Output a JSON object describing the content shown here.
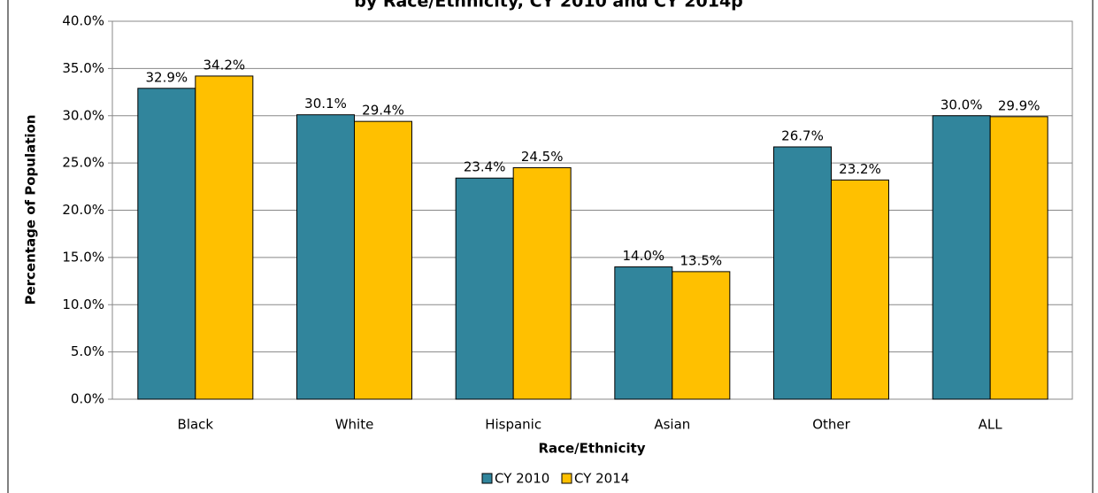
{
  "chart_data": {
    "type": "bar",
    "title": "by Race/Ethnicity, CY 2010 and CY 2014p",
    "x_label": "Race/Ethnicity",
    "y_label": "Percentage of Population",
    "categories": [
      "Black",
      "White",
      "Hispanic",
      "Asian",
      "Other",
      "ALL"
    ],
    "series": [
      {
        "name": "CY 2010",
        "color": "#31859c",
        "values": [
          32.9,
          30.1,
          23.4,
          14.0,
          26.7,
          30.0
        ],
        "value_labels": [
          "32.9%",
          "30.1%",
          "23.4%",
          "14.0%",
          "26.7%",
          "30.0%"
        ]
      },
      {
        "name": "CY 2014",
        "color": "#ffc000",
        "values": [
          34.2,
          29.4,
          24.5,
          13.5,
          23.2,
          29.9
        ],
        "value_labels": [
          "34.2%",
          "29.4%",
          "24.5%",
          "13.5%",
          "23.2%",
          "29.9%"
        ]
      }
    ],
    "ylim": [
      0,
      40
    ],
    "yticks": [
      {
        "value": 0,
        "label": "0.0%"
      },
      {
        "value": 5,
        "label": "5.0%"
      },
      {
        "value": 10,
        "label": "10.0%"
      },
      {
        "value": 15,
        "label": "15.0%"
      },
      {
        "value": 20,
        "label": "20.0%"
      },
      {
        "value": 25,
        "label": "25.0%"
      },
      {
        "value": 30,
        "label": "30.0%"
      },
      {
        "value": 35,
        "label": "35.0%"
      },
      {
        "value": 40,
        "label": "40.0%"
      }
    ],
    "grid": true,
    "legend": "bottom"
  }
}
